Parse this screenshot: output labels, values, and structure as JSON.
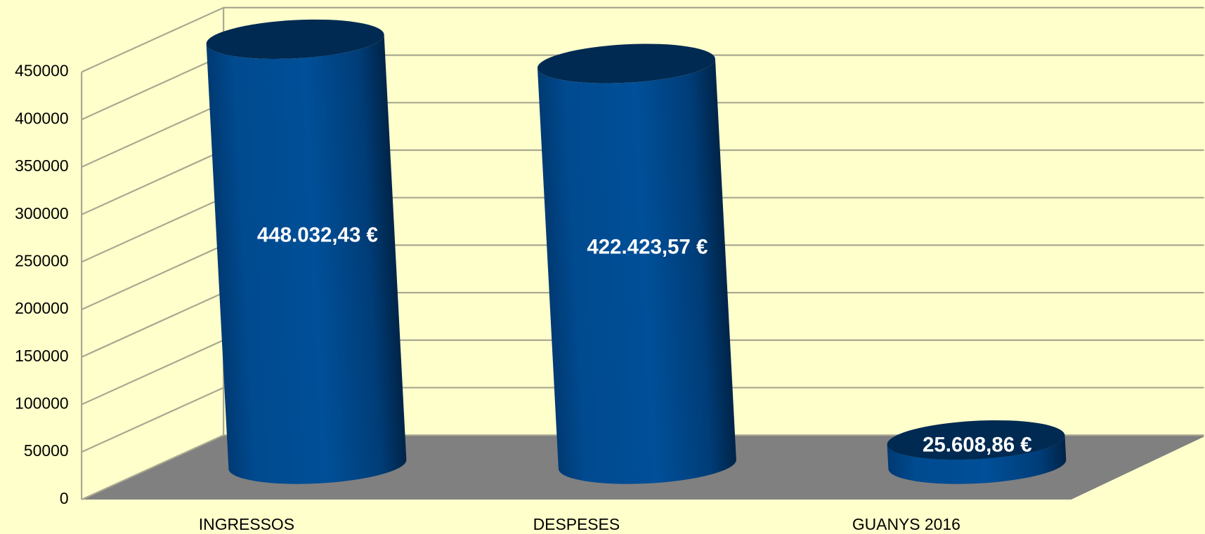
{
  "chart_data": {
    "type": "bar",
    "categories": [
      "INGRESSOS",
      "DESPESES",
      "GUANYS 2016"
    ],
    "values": [
      448032.43,
      422423.57,
      25608.86
    ],
    "value_labels": [
      "448.032,43 €",
      "422.423,57 €",
      "25.608,86 €"
    ],
    "color": "#004a8f",
    "ylim": [
      0,
      450000
    ],
    "yticks": [
      0,
      50000,
      100000,
      150000,
      200000,
      250000,
      300000,
      350000,
      400000,
      450000
    ],
    "grid": true
  }
}
